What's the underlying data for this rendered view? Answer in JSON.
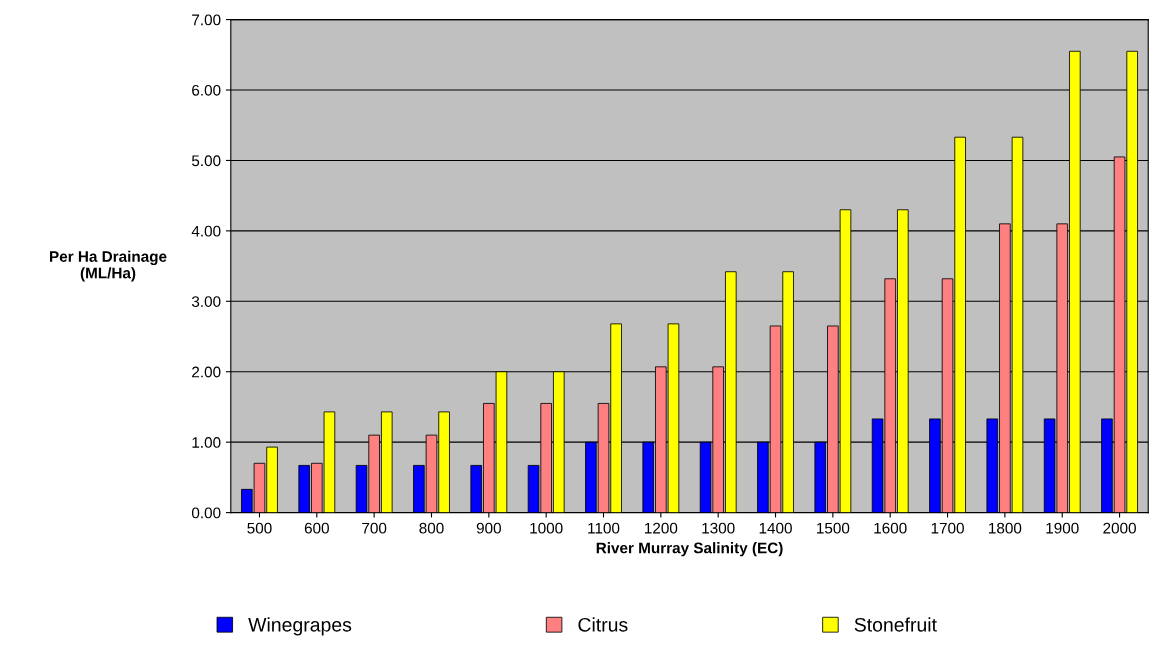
{
  "chart_data": {
    "type": "bar",
    "xlabel": "River Murray Salinity (EC)",
    "ylabel": "Per Ha Drainage\n(ML/Ha)",
    "categories": [
      "500",
      "600",
      "700",
      "800",
      "900",
      "1000",
      "1100",
      "1200",
      "1300",
      "1400",
      "1500",
      "1600",
      "1700",
      "1800",
      "1900",
      "2000"
    ],
    "series": [
      {
        "name": "Winegrapes",
        "color": "#0000ff",
        "values": [
          0.33,
          0.67,
          0.67,
          0.67,
          0.67,
          0.67,
          1.0,
          1.0,
          1.0,
          1.0,
          1.0,
          1.33,
          1.33,
          1.33,
          1.33,
          1.33
        ]
      },
      {
        "name": "Citrus",
        "color": "#ff8080",
        "values": [
          0.7,
          0.7,
          1.1,
          1.1,
          1.55,
          1.55,
          1.55,
          2.07,
          2.07,
          2.65,
          2.65,
          3.32,
          3.32,
          4.1,
          4.1,
          5.05
        ]
      },
      {
        "name": "Stonefruit",
        "color": "#ffff00",
        "values": [
          0.93,
          1.43,
          1.43,
          1.43,
          2.0,
          2.0,
          2.68,
          2.68,
          3.42,
          3.42,
          4.3,
          4.3,
          5.33,
          5.33,
          6.55,
          6.55
        ]
      }
    ],
    "ylim": [
      0,
      7
    ],
    "yticks": [
      {
        "value": 0,
        "label": "0.00"
      },
      {
        "value": 1,
        "label": "1.00"
      },
      {
        "value": 2,
        "label": "2.00"
      },
      {
        "value": 3,
        "label": "3.00"
      },
      {
        "value": 4,
        "label": "4.00"
      },
      {
        "value": 5,
        "label": "5.00"
      },
      {
        "value": 6,
        "label": "6.00"
      },
      {
        "value": 7,
        "label": "7.00"
      }
    ],
    "grid": "y",
    "legend": "bottom"
  }
}
